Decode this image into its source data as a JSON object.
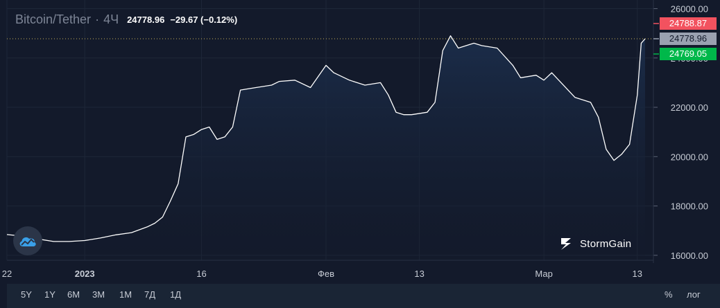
{
  "legend": {
    "symbol": "Bitcoin/Tether",
    "separator": "·",
    "timeframe": "4Ч",
    "last_price": "24778.96",
    "change": "−29.67 (−0.12%)"
  },
  "price_labels": {
    "ask": "24788.87",
    "last": "24778.96",
    "bid": "24769.05",
    "ask_color": "#f2525f",
    "last_color": "#9aa1b0",
    "bid_color": "#00b84a"
  },
  "brand": {
    "name": "StormGain"
  },
  "range_buttons": [
    "5Y",
    "1Y",
    "6M",
    "3M",
    "1M",
    "7Д",
    "1Д"
  ],
  "scale_buttons": {
    "percent": "%",
    "log": "лог"
  },
  "colors": {
    "background": "#131a2b",
    "line": "#ffffff",
    "area_top": "#1b2d4a",
    "grid": "#1e2738",
    "dotted_line": "#c9b35a"
  },
  "chart_data": {
    "type": "area",
    "title": "",
    "xlabel": "",
    "ylabel": "",
    "ylim": [
      15800,
      26350
    ],
    "grid": true,
    "y_ticks": [
      16000,
      18000,
      20000,
      22000,
      24000,
      26000
    ],
    "y_tick_labels": [
      "16000.00",
      "18000.00",
      "20000.00",
      "22000.00",
      "24000.00",
      "26000.00"
    ],
    "x_tick_labels": [
      "22",
      "2023",
      "16",
      "Фев",
      "13",
      "Мар",
      "13"
    ],
    "x_tick_dates": [
      "2022-12-22",
      "2023-01-01",
      "2023-01-16",
      "2023-02-01",
      "2023-02-13",
      "2023-03-01",
      "2023-03-13"
    ],
    "x_range": [
      "2022-12-22",
      "2023-03-14"
    ],
    "dotted_level": 24778.96,
    "series": [
      {
        "x": [
          "2022-12-22",
          "2022-12-24",
          "2022-12-26",
          "2022-12-28",
          "2022-12-30",
          "2023-01-01",
          "2023-01-03",
          "2023-01-05",
          "2023-01-07",
          "2023-01-09",
          "2023-01-10",
          "2023-01-11",
          "2023-01-12",
          "2023-01-13",
          "2023-01-14",
          "2023-01-15",
          "2023-01-16",
          "2023-01-17",
          "2023-01-18",
          "2023-01-19",
          "2023-01-20",
          "2023-01-21",
          "2023-01-23",
          "2023-01-25",
          "2023-01-26",
          "2023-01-28",
          "2023-01-30",
          "2023-02-01",
          "2023-02-02",
          "2023-02-04",
          "2023-02-06",
          "2023-02-08",
          "2023-02-09",
          "2023-02-10",
          "2023-02-11",
          "2023-02-12",
          "2023-02-14",
          "2023-02-15",
          "2023-02-16",
          "2023-02-17",
          "2023-02-18",
          "2023-02-20",
          "2023-02-21",
          "2023-02-23",
          "2023-02-25",
          "2023-02-26",
          "2023-02-28",
          "2023-03-01",
          "2023-03-02",
          "2023-03-05",
          "2023-03-07",
          "2023-03-08",
          "2023-03-09",
          "2023-03-10",
          "2023-03-11",
          "2023-03-12",
          "2023-03-13",
          "2023-03-13T12:00",
          "2023-03-14"
        ],
        "values": [
          16840,
          16780,
          16660,
          16560,
          16560,
          16600,
          16700,
          16830,
          16920,
          17150,
          17300,
          17550,
          18200,
          18900,
          20800,
          20900,
          21100,
          21200,
          20700,
          20800,
          21200,
          22700,
          22800,
          22900,
          23050,
          23100,
          22800,
          23700,
          23400,
          23100,
          22900,
          23000,
          22500,
          21800,
          21700,
          21700,
          21800,
          22200,
          24300,
          24900,
          24400,
          24600,
          24500,
          24400,
          23700,
          23200,
          23300,
          23100,
          23400,
          22400,
          22200,
          21600,
          20300,
          19850,
          20100,
          20500,
          22500,
          24600,
          24778.96
        ]
      }
    ]
  }
}
